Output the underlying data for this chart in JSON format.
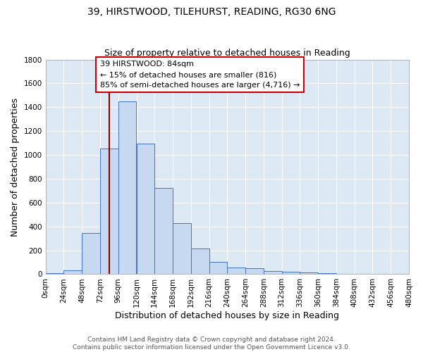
{
  "title": "39, HIRSTWOOD, TILEHURST, READING, RG30 6NG",
  "subtitle": "Size of property relative to detached houses in Reading",
  "xlabel": "Distribution of detached houses by size in Reading",
  "ylabel": "Number of detached properties",
  "bin_edges": [
    0,
    24,
    48,
    72,
    96,
    120,
    144,
    168,
    192,
    216,
    240,
    264,
    288,
    312,
    336,
    360,
    384,
    408,
    432,
    456,
    480
  ],
  "bar_heights": [
    10,
    30,
    345,
    1055,
    1450,
    1095,
    725,
    430,
    215,
    105,
    57,
    47,
    28,
    18,
    12,
    7,
    5,
    3,
    2,
    1
  ],
  "bar_color": "#c6d9f0",
  "bar_edge_color": "#4472c4",
  "background_color": "#dce9f5",
  "grid_color": "#ffffff",
  "vline_x": 84,
  "vline_color": "#8b0000",
  "annotation_text": "39 HIRSTWOOD: 84sqm\n← 15% of detached houses are smaller (816)\n85% of semi-detached houses are larger (4,716) →",
  "annotation_box_color": "#ffffff",
  "annotation_box_edge": "#cc0000",
  "ylim": [
    0,
    1800
  ],
  "yticks": [
    0,
    200,
    400,
    600,
    800,
    1000,
    1200,
    1400,
    1600,
    1800
  ],
  "xtick_labels": [
    "0sqm",
    "24sqm",
    "48sqm",
    "72sqm",
    "96sqm",
    "120sqm",
    "144sqm",
    "168sqm",
    "192sqm",
    "216sqm",
    "240sqm",
    "264sqm",
    "288sqm",
    "312sqm",
    "336sqm",
    "360sqm",
    "384sqm",
    "408sqm",
    "432sqm",
    "456sqm",
    "480sqm"
  ],
  "footer_text": "Contains HM Land Registry data © Crown copyright and database right 2024.\nContains public sector information licensed under the Open Government Licence v3.0.",
  "title_fontsize": 10,
  "subtitle_fontsize": 9,
  "axis_label_fontsize": 9,
  "tick_fontsize": 7.5,
  "annotation_fontsize": 8,
  "footer_fontsize": 6.5
}
